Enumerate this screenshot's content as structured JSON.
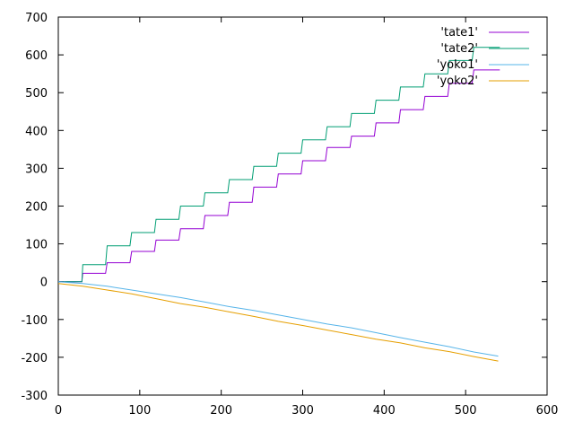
{
  "chart_data": {
    "type": "line",
    "title": "",
    "xlabel": "",
    "ylabel": "",
    "xlim": [
      0,
      600
    ],
    "ylim": [
      -300,
      700
    ],
    "x_ticks": [
      0,
      100,
      200,
      300,
      400,
      500,
      600
    ],
    "y_ticks": [
      -300,
      -200,
      -100,
      0,
      100,
      200,
      300,
      400,
      500,
      600,
      700
    ],
    "x_tick_labels": [
      "0",
      "100",
      "200",
      "300",
      "400",
      "500",
      "600"
    ],
    "y_tick_labels": [
      "-300",
      "-200",
      "-100",
      "0",
      "100",
      "200",
      "300",
      "400",
      "500",
      "600",
      "700"
    ],
    "grid": false,
    "legend_position": "top-right",
    "series": [
      {
        "name": "'tate1'",
        "color": "#9400d3",
        "x": [
          0,
          29,
          30,
          58,
          60,
          88,
          90,
          118,
          120,
          148,
          150,
          178,
          180,
          208,
          210,
          238,
          240,
          268,
          270,
          298,
          300,
          328,
          330,
          358,
          360,
          388,
          390,
          418,
          420,
          448,
          450,
          478,
          480,
          508,
          510,
          538,
          542
        ],
        "y": [
          0,
          0,
          22,
          22,
          50,
          50,
          80,
          80,
          110,
          110,
          140,
          140,
          175,
          175,
          210,
          210,
          250,
          250,
          285,
          285,
          320,
          320,
          355,
          355,
          385,
          385,
          420,
          420,
          455,
          455,
          490,
          490,
          525,
          525,
          560,
          560,
          560
        ]
      },
      {
        "name": "'tate2'",
        "color": "#009e73",
        "x": [
          0,
          29,
          30,
          58,
          60,
          88,
          90,
          118,
          120,
          148,
          150,
          178,
          180,
          208,
          210,
          238,
          240,
          268,
          270,
          298,
          300,
          328,
          330,
          358,
          360,
          388,
          390,
          418,
          420,
          448,
          450,
          478,
          480,
          508,
          510,
          538,
          542
        ],
        "y": [
          0,
          0,
          45,
          45,
          95,
          95,
          130,
          130,
          165,
          165,
          200,
          200,
          235,
          235,
          270,
          270,
          305,
          305,
          340,
          340,
          375,
          375,
          410,
          410,
          445,
          445,
          480,
          480,
          515,
          515,
          550,
          550,
          585,
          585,
          620,
          620,
          620
        ]
      },
      {
        "name": "'yoko1'",
        "color": "#56b4e9",
        "x": [
          0,
          30,
          60,
          90,
          120,
          150,
          180,
          210,
          240,
          270,
          300,
          330,
          360,
          390,
          420,
          450,
          480,
          510,
          540
        ],
        "y": [
          0,
          -5,
          -12,
          -22,
          -32,
          -42,
          -54,
          -66,
          -76,
          -88,
          -100,
          -112,
          -122,
          -135,
          -148,
          -160,
          -172,
          -186,
          -197
        ]
      },
      {
        "name": "'yoko2'",
        "color": "#e69f00",
        "x": [
          0,
          30,
          60,
          90,
          120,
          150,
          180,
          210,
          240,
          270,
          300,
          330,
          360,
          390,
          420,
          450,
          480,
          510,
          540
        ],
        "y": [
          -5,
          -12,
          -22,
          -32,
          -45,
          -58,
          -68,
          -80,
          -92,
          -105,
          -116,
          -128,
          -140,
          -152,
          -162,
          -175,
          -185,
          -198,
          -210
        ]
      }
    ]
  }
}
